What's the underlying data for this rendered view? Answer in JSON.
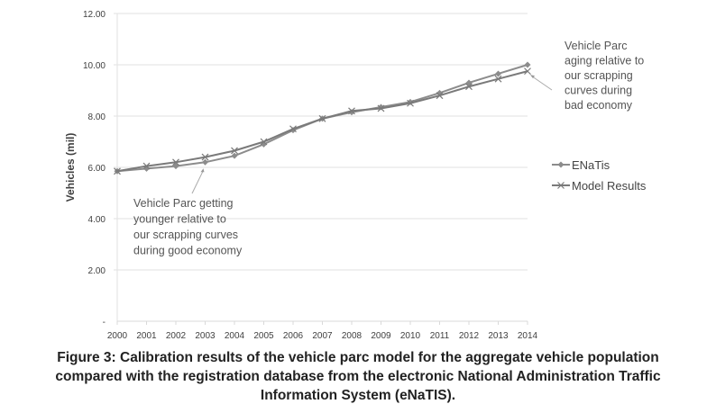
{
  "chart_data": {
    "type": "line",
    "title": "",
    "xlabel": "",
    "ylabel": "Vehicles (mil)",
    "x": [
      2000,
      2001,
      2002,
      2003,
      2004,
      2005,
      2006,
      2007,
      2008,
      2009,
      2010,
      2011,
      2012,
      2013,
      2014
    ],
    "x_tick_labels": [
      "2000",
      "2001",
      "2002",
      "2003",
      "2004",
      "2005",
      "2006",
      "2007",
      "2008",
      "2009",
      "2010",
      "2011",
      "2012",
      "2013",
      "2014"
    ],
    "y_tick_labels": [
      "-",
      "2.00",
      "4.00",
      "6.00",
      "8.00",
      "10.00",
      "12.00"
    ],
    "y_ticks": [
      0,
      2,
      4,
      6,
      8,
      10,
      12
    ],
    "ylim": [
      0,
      12
    ],
    "grid": true,
    "legend_position": "right",
    "series": [
      {
        "name": "ENaTis",
        "marker": "diamond",
        "color": "#8c8c8c",
        "values": [
          5.85,
          5.95,
          6.05,
          6.2,
          6.45,
          6.9,
          7.45,
          7.9,
          8.15,
          8.35,
          8.55,
          8.9,
          9.3,
          9.65,
          10.0
        ]
      },
      {
        "name": "Model Results",
        "marker": "cross",
        "color": "#7a7a7a",
        "values": [
          5.85,
          6.05,
          6.2,
          6.4,
          6.65,
          7.0,
          7.5,
          7.9,
          8.2,
          8.3,
          8.5,
          8.8,
          9.15,
          9.45,
          9.75
        ]
      }
    ],
    "annotations": [
      {
        "lines": [
          "Vehicle Parc getting",
          "younger relative to",
          "our scrapping curves",
          "during good economy"
        ],
        "points_to": {
          "x": 2003,
          "y": 6.2
        }
      },
      {
        "lines": [
          "Vehicle Parc",
          "aging relative to",
          "our scrapping",
          "curves during",
          "bad economy"
        ],
        "points_to": {
          "x": 2014,
          "y": 9.75
        }
      }
    ]
  },
  "caption": {
    "lines": [
      "Figure 3: Calibration results of the vehicle parc model for the aggregate vehicle population",
      "compared with the registration database from the electronic National Administration Traffic",
      "Information System (eNaTIS)."
    ]
  }
}
